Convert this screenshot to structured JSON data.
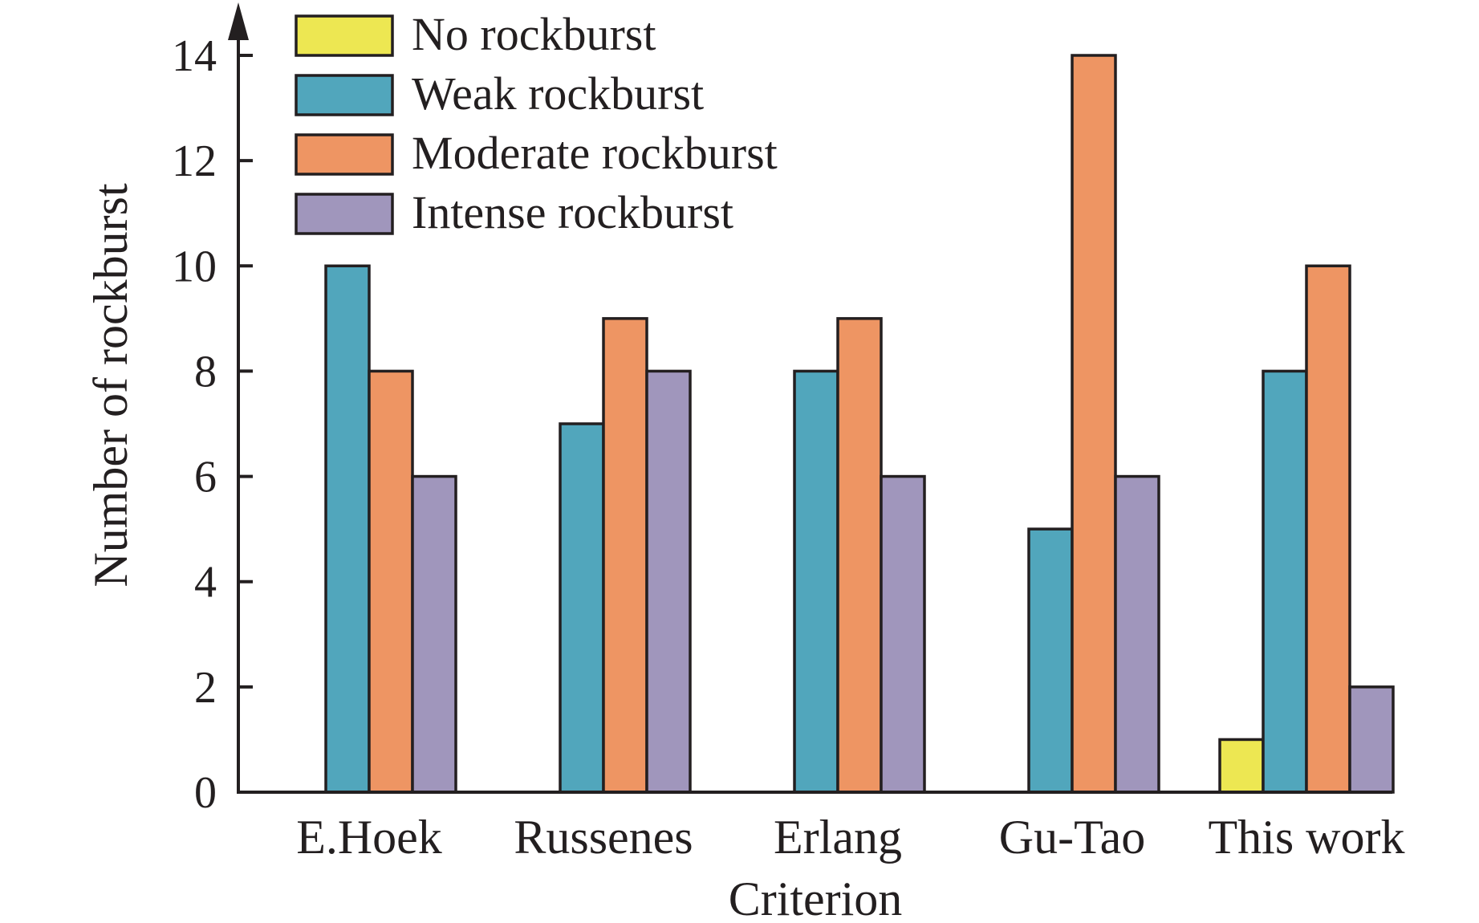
{
  "chart_data": {
    "type": "bar",
    "categories": [
      "E.Hoek",
      "Russenes",
      "Erlang",
      "Gu-Tao",
      "This work"
    ],
    "series": [
      {
        "name": "No rockburst",
        "color": "#ede752",
        "values": [
          0,
          0,
          0,
          0,
          1
        ]
      },
      {
        "name": "Weak rockburst",
        "color": "#51a6bc",
        "values": [
          10,
          7,
          8,
          5,
          8
        ]
      },
      {
        "name": "Moderate rockburst",
        "color": "#ee9563",
        "values": [
          8,
          9,
          9,
          14,
          10
        ]
      },
      {
        "name": "Intense rockburst",
        "color": "#a096bc",
        "values": [
          6,
          8,
          6,
          6,
          2
        ]
      }
    ],
    "xlabel": "Criterion",
    "ylabel": "Number of rockburst",
    "ylim": [
      0,
      14
    ],
    "yticks": [
      0,
      2,
      4,
      6,
      8,
      10,
      12,
      14
    ],
    "grid": false,
    "legend": "top-left"
  }
}
